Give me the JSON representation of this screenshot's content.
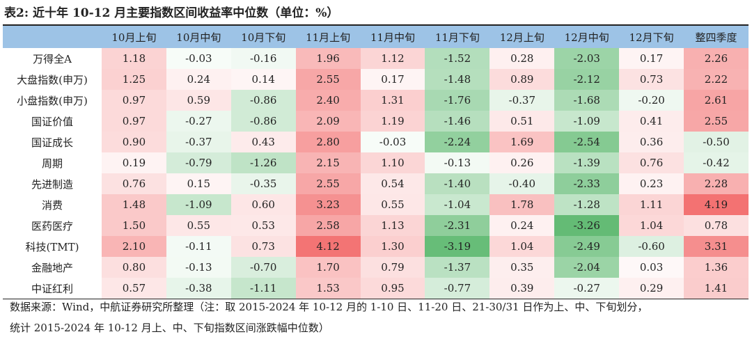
{
  "title": "表2: 近十年 10-12 月主要指数区间收益率中位数（单位：%）",
  "columns": [
    "10月上旬",
    "10月中旬",
    "10月下旬",
    "11月上旬",
    "11月中旬",
    "11月下旬",
    "12月上旬",
    "12月中旬",
    "12月下旬",
    "整四季度"
  ],
  "rows": [
    {
      "label": "万得全A",
      "values": [
        "1.18",
        "-0.03",
        "-0.16",
        "1.96",
        "1.12",
        "-1.52",
        "0.28",
        "-2.03",
        "0.17",
        "2.26"
      ]
    },
    {
      "label": "大盘指数(申万)",
      "values": [
        "1.25",
        "0.24",
        "0.14",
        "2.55",
        "0.17",
        "-1.48",
        "0.89",
        "-2.12",
        "0.73",
        "2.22"
      ]
    },
    {
      "label": "小盘指数(申万)",
      "values": [
        "0.97",
        "0.59",
        "-0.86",
        "2.40",
        "1.31",
        "-1.76",
        "-0.37",
        "-1.68",
        "-0.20",
        "2.61"
      ]
    },
    {
      "label": "国证价值",
      "values": [
        "0.97",
        "-0.27",
        "-0.86",
        "2.09",
        "1.19",
        "-1.46",
        "0.51",
        "-1.09",
        "0.41",
        "2.55"
      ]
    },
    {
      "label": "国证成长",
      "values": [
        "0.90",
        "-0.37",
        "0.43",
        "2.80",
        "-0.03",
        "-2.24",
        "1.69",
        "-2.54",
        "0.36",
        "-0.50"
      ]
    },
    {
      "label": "周期",
      "values": [
        "0.19",
        "-0.79",
        "-1.26",
        "2.15",
        "1.10",
        "-0.13",
        "0.26",
        "-1.39",
        "0.76",
        "-0.42"
      ]
    },
    {
      "label": "先进制造",
      "values": [
        "0.76",
        "0.15",
        "-0.35",
        "2.55",
        "0.54",
        "-1.40",
        "-0.40",
        "-2.33",
        "0.23",
        "2.28"
      ]
    },
    {
      "label": "消费",
      "values": [
        "1.48",
        "-1.09",
        "0.60",
        "3.23",
        "0.55",
        "-1.04",
        "1.78",
        "-1.28",
        "1.11",
        "4.19"
      ]
    },
    {
      "label": "医药医疗",
      "values": [
        "1.50",
        "0.55",
        "0.53",
        "2.58",
        "1.13",
        "-2.31",
        "0.24",
        "-3.26",
        "1.04",
        "0.78"
      ]
    },
    {
      "label": "科技(TMT)",
      "values": [
        "2.10",
        "-0.11",
        "0.73",
        "4.12",
        "1.30",
        "-3.19",
        "1.04",
        "-2.49",
        "-0.60",
        "3.31"
      ]
    },
    {
      "label": "金融地产",
      "values": [
        "0.80",
        "-0.13",
        "-0.70",
        "1.70",
        "0.79",
        "-1.37",
        "0.35",
        "-2.04",
        "0.03",
        "1.36"
      ]
    },
    {
      "label": "中证红利",
      "values": [
        "0.57",
        "-0.38",
        "-1.11",
        "1.53",
        "0.95",
        "-0.77",
        "0.39",
        "-0.27",
        "0.29",
        "1.41"
      ]
    }
  ],
  "note_line1": "数据来源：Wind，中航证券研究所整理（注：取 2015-2024 年 10-12 月的 1-10 日、11-20 日、21-30/31 日作为上、中、下旬划分，",
  "note_line2": "统计 2015-2024 年 10-12 月上、中、下旬指数区间涨跌幅中位数）",
  "colors": {
    "header": "#9dc3e6",
    "positive": "#f26b6b",
    "negative": "#5cb86e"
  }
}
